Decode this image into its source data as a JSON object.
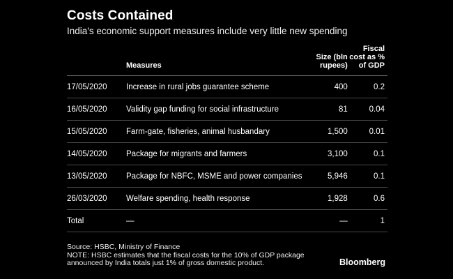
{
  "chart_data": {
    "type": "table",
    "title": "Costs Contained",
    "subtitle": "India's economic support measures include very little new spending",
    "columns": [
      "",
      "Measures",
      "Size (bln rupees)",
      "Fiscal cost as % of GDP"
    ],
    "rows": [
      {
        "date": "17/05/2020",
        "measure": "Increase in rural jobs guarantee scheme",
        "size": "400",
        "fiscal": "0.2"
      },
      {
        "date": "16/05/2020",
        "measure": "Validity gap funding for social infrastructure",
        "size": "81",
        "fiscal": "0.04"
      },
      {
        "date": "15/05/2020",
        "measure": "Farm-gate, fisheries, animal husbandary",
        "size": "1,500",
        "fiscal": "0.01"
      },
      {
        "date": "14/05/2020",
        "measure": "Package for migrants and farmers",
        "size": "3,100",
        "fiscal": "0.1"
      },
      {
        "date": "13/05/2020",
        "measure": "Package for NBFC, MSME and power companies",
        "size": "5,946",
        "fiscal": "0.1"
      },
      {
        "date": "26/03/2020",
        "measure": "Welfare spending, health response",
        "size": "1,928",
        "fiscal": "0.6"
      },
      {
        "date": "Total",
        "measure": "—",
        "size": "—",
        "fiscal": "1"
      }
    ],
    "source": "Source: HSBC, Ministry of Finance",
    "note_line1": "NOTE: HSBC estimates that the fiscal costs for the 10% of GDP package",
    "note_line2": "announced by India totals just 1% of gross domestic product.",
    "brand": "Bloomberg"
  }
}
